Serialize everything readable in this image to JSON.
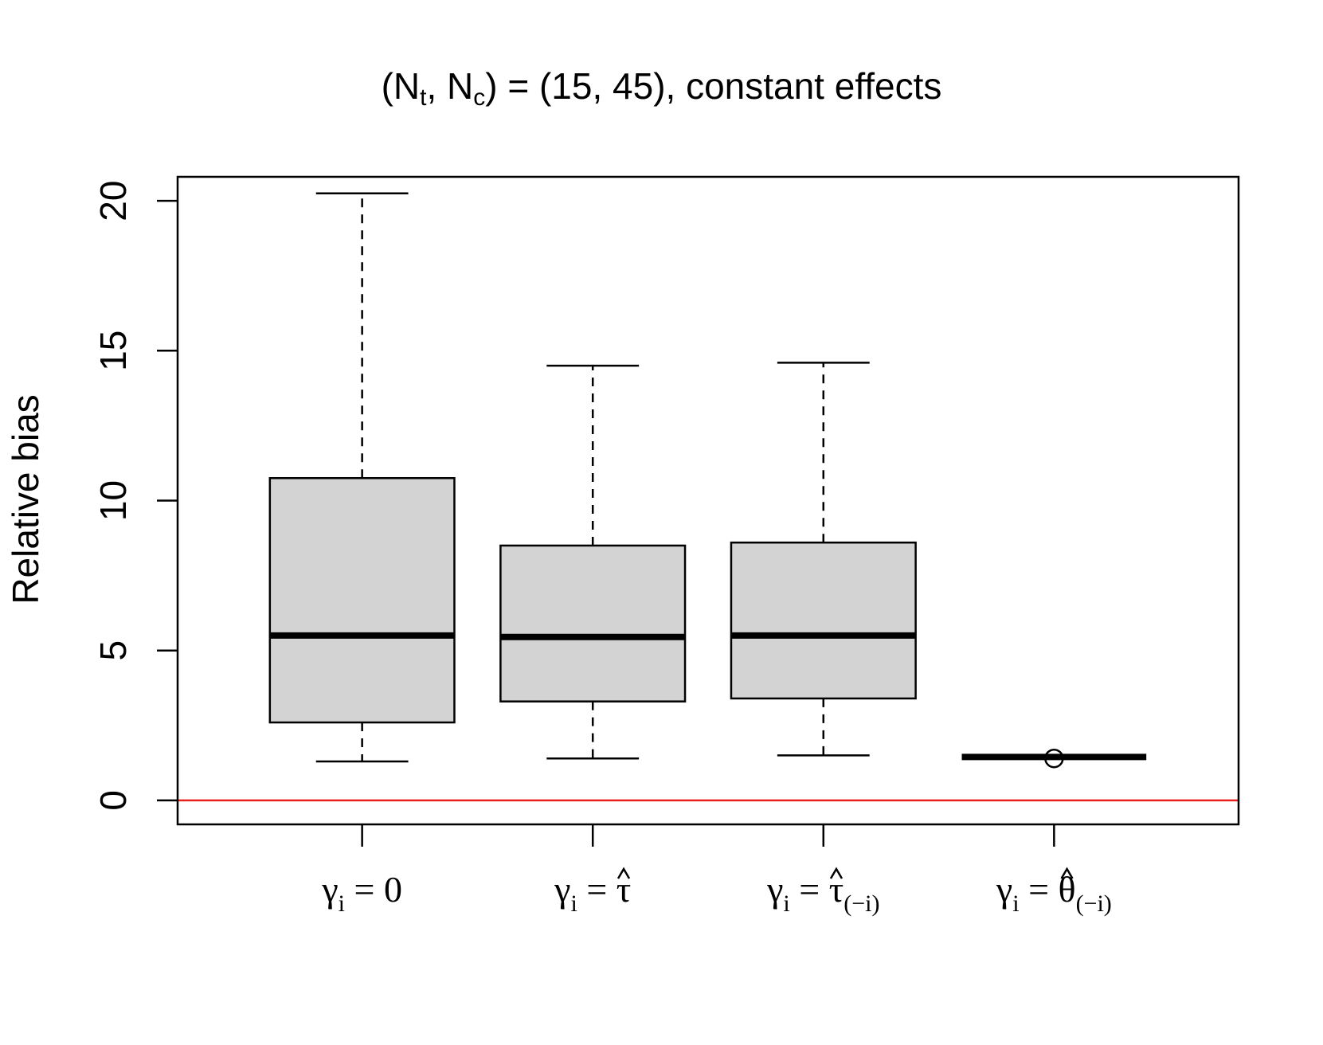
{
  "chart_data": {
    "type": "box",
    "title": {
      "prefix": "(N",
      "sub_t": "t",
      "mid": ", N",
      "sub_c": "c",
      "suffix": ") = (15, 45), constant effects"
    },
    "xlabel": "",
    "ylabel": "Relative bias",
    "ylim": [
      -0.8,
      20.8
    ],
    "yticks": [
      0,
      5,
      10,
      15,
      20
    ],
    "reference_line": {
      "y": 0,
      "color": "#e8201c"
    },
    "box_fill": "#d3d3d3",
    "categories": [
      {
        "symbol": "γ",
        "sub": "i",
        "eq": " = ",
        "value": "0",
        "value_sub": "",
        "hat": false
      },
      {
        "symbol": "γ",
        "sub": "i",
        "eq": " = ",
        "value": "τ",
        "value_sub": "",
        "hat": true
      },
      {
        "symbol": "γ",
        "sub": "i",
        "eq": " = ",
        "value": "τ",
        "value_sub": "(−i)",
        "hat": true
      },
      {
        "symbol": "γ",
        "sub": "i",
        "eq": " = ",
        "value": "θ",
        "value_sub": "(−i)",
        "hat": true
      }
    ],
    "boxes": [
      {
        "whisker_low": 1.3,
        "q1": 2.6,
        "median": 5.5,
        "q3": 10.75,
        "whisker_high": 20.25,
        "outliers": []
      },
      {
        "whisker_low": 1.4,
        "q1": 3.3,
        "median": 5.45,
        "q3": 8.5,
        "whisker_high": 14.5,
        "outliers": []
      },
      {
        "whisker_low": 1.5,
        "q1": 3.4,
        "median": 5.5,
        "q3": 8.6,
        "whisker_high": 14.6,
        "outliers": []
      },
      {
        "whisker_low": 1.45,
        "q1": 1.45,
        "median": 1.45,
        "q3": 1.45,
        "whisker_high": 1.45,
        "outliers": [
          1.4
        ]
      }
    ]
  }
}
